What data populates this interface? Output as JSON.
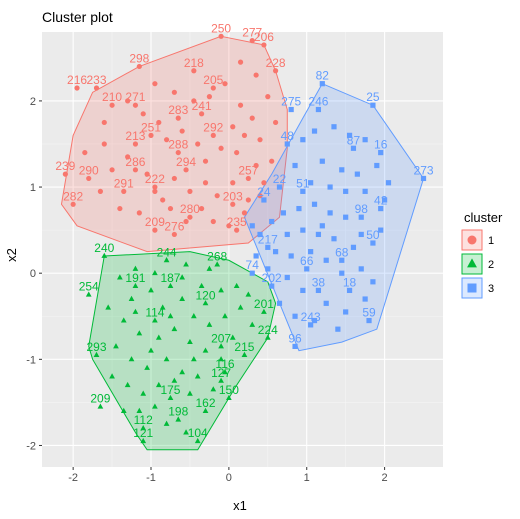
{
  "chart_data": {
    "type": "scatter",
    "title": "Cluster plot",
    "xlabel": "x1",
    "ylabel": "x2",
    "xlim": [
      -2.4,
      2.75
    ],
    "ylim": [
      -2.25,
      2.8
    ],
    "x_ticks": [
      -2,
      -1,
      0,
      1,
      2
    ],
    "y_ticks": [
      -2,
      -1,
      0,
      1,
      2
    ],
    "grid": true,
    "legend": {
      "title": "cluster",
      "placement": "right"
    },
    "series": [
      {
        "name": "1",
        "color": "#F8766D",
        "shape": "circle",
        "hull": [
          [
            -0.1,
            2.75
          ],
          [
            0.45,
            2.65
          ],
          [
            0.6,
            2.35
          ],
          [
            0.75,
            1.9
          ],
          [
            0.75,
            1.45
          ],
          [
            0.65,
            0.65
          ],
          [
            0.25,
            0.35
          ],
          [
            -1.05,
            0.25
          ],
          [
            -1.95,
            0.55
          ],
          [
            -2.15,
            0.8
          ],
          [
            -2.0,
            1.6
          ],
          [
            -1.75,
            2.1
          ],
          [
            -1.15,
            2.4
          ]
        ],
        "points": [
          {
            "label": "250",
            "x": -0.1,
            "y": 2.75
          },
          {
            "label": "277",
            "x": 0.3,
            "y": 2.7
          },
          {
            "label": "206",
            "x": 0.45,
            "y": 2.65
          },
          {
            "label": "298",
            "x": -1.15,
            "y": 2.4
          },
          {
            "label": "218",
            "x": -0.45,
            "y": 2.35
          },
          {
            "label": "228",
            "x": 0.6,
            "y": 2.35
          },
          {
            "label": "216",
            "x": -1.95,
            "y": 2.15
          },
          {
            "label": "233",
            "x": -1.7,
            "y": 2.15
          },
          {
            "label": "210",
            "x": -1.5,
            "y": 1.95
          },
          {
            "label": "271",
            "x": -1.2,
            "y": 1.95
          },
          {
            "label": "283",
            "x": -0.65,
            "y": 1.8
          },
          {
            "label": "241",
            "x": -0.35,
            "y": 1.85
          },
          {
            "label": "292",
            "x": -0.2,
            "y": 1.6
          },
          {
            "label": "251",
            "x": -1.0,
            "y": 1.6
          },
          {
            "label": "213",
            "x": -1.2,
            "y": 1.5
          },
          {
            "label": "288",
            "x": -0.65,
            "y": 1.4
          },
          {
            "label": "286",
            "x": -1.2,
            "y": 1.2
          },
          {
            "label": "239",
            "x": -2.1,
            "y": 1.15
          },
          {
            "label": "290",
            "x": -1.8,
            "y": 1.1
          },
          {
            "label": "222",
            "x": -0.95,
            "y": 1.0
          },
          {
            "label": "291",
            "x": -1.35,
            "y": 0.95
          },
          {
            "label": "282",
            "x": -2.0,
            "y": 0.8
          },
          {
            "label": "280",
            "x": -0.5,
            "y": 0.65
          },
          {
            "label": "235",
            "x": 0.1,
            "y": 0.5
          },
          {
            "label": "276",
            "x": -0.7,
            "y": 0.45
          },
          {
            "label": "209",
            "x": -0.95,
            "y": 0.5
          },
          {
            "label": "257",
            "x": 0.25,
            "y": 1.1
          },
          {
            "label": "205",
            "x": -0.2,
            "y": 2.15
          },
          {
            "label": "294",
            "x": -0.55,
            "y": 1.2
          },
          {
            "label": "203",
            "x": 0.05,
            "y": 0.8
          }
        ]
      },
      {
        "name": "2",
        "color": "#00BA38",
        "shape": "triangle",
        "hull": [
          [
            -1.6,
            0.2
          ],
          [
            -0.5,
            0.25
          ],
          [
            0.0,
            0.15
          ],
          [
            0.5,
            -0.1
          ],
          [
            0.6,
            -0.35
          ],
          [
            0.5,
            -0.75
          ],
          [
            0.1,
            -1.3
          ],
          [
            -0.4,
            -2.05
          ],
          [
            -1.05,
            -2.05
          ],
          [
            -1.2,
            -1.85
          ],
          [
            -1.75,
            -1.0
          ],
          [
            -1.8,
            -0.85
          ]
        ],
        "points": [
          {
            "label": "240",
            "x": -1.6,
            "y": 0.2
          },
          {
            "label": "244",
            "x": -0.8,
            "y": 0.15
          },
          {
            "label": "268",
            "x": -0.15,
            "y": 0.1
          },
          {
            "label": "254",
            "x": -1.8,
            "y": -0.25
          },
          {
            "label": "293",
            "x": -1.7,
            "y": -0.95
          },
          {
            "label": "209",
            "x": -1.65,
            "y": -1.55
          },
          {
            "label": "121",
            "x": -1.1,
            "y": -1.95
          },
          {
            "label": "198",
            "x": -0.65,
            "y": -1.7
          },
          {
            "label": "162",
            "x": -0.3,
            "y": -1.6
          },
          {
            "label": "104",
            "x": -0.4,
            "y": -1.95
          },
          {
            "label": "150",
            "x": 0.0,
            "y": -1.45
          },
          {
            "label": "127",
            "x": -0.1,
            "y": -1.25
          },
          {
            "label": "215",
            "x": 0.2,
            "y": -0.95
          },
          {
            "label": "224",
            "x": 0.5,
            "y": -0.75
          },
          {
            "label": "201",
            "x": 0.45,
            "y": -0.45
          },
          {
            "label": "191",
            "x": -1.2,
            "y": -0.15
          },
          {
            "label": "187",
            "x": -0.75,
            "y": -0.15
          },
          {
            "label": "120",
            "x": -0.3,
            "y": -0.35
          },
          {
            "label": "112",
            "x": -1.1,
            "y": -1.8
          },
          {
            "label": "175",
            "x": -0.75,
            "y": -1.45
          },
          {
            "label": "116",
            "x": -0.05,
            "y": -1.15
          },
          {
            "label": "207",
            "x": -0.1,
            "y": -0.85
          },
          {
            "label": "114",
            "x": -0.95,
            "y": -0.55
          }
        ]
      },
      {
        "name": "3",
        "color": "#619CFF",
        "shape": "square",
        "hull": [
          [
            1.2,
            2.2
          ],
          [
            1.85,
            1.95
          ],
          [
            2.5,
            1.1
          ],
          [
            1.9,
            -0.65
          ],
          [
            1.45,
            -0.8
          ],
          [
            0.9,
            -0.9
          ],
          [
            0.2,
            0.65
          ],
          [
            0.55,
            1.15
          ],
          [
            0.95,
            1.8
          ]
        ],
        "points": [
          {
            "label": "82",
            "x": 1.2,
            "y": 2.2
          },
          {
            "label": "275",
            "x": 0.8,
            "y": 1.9
          },
          {
            "label": "246",
            "x": 1.15,
            "y": 1.9
          },
          {
            "label": "25",
            "x": 1.85,
            "y": 1.95
          },
          {
            "label": "273",
            "x": 2.5,
            "y": 1.1
          },
          {
            "label": "48",
            "x": 0.75,
            "y": 1.5
          },
          {
            "label": "87",
            "x": 1.6,
            "y": 1.45
          },
          {
            "label": "16",
            "x": 1.95,
            "y": 1.4
          },
          {
            "label": "51",
            "x": 0.95,
            "y": 0.95
          },
          {
            "label": "22",
            "x": 0.65,
            "y": 1.0
          },
          {
            "label": "24",
            "x": 0.45,
            "y": 0.85
          },
          {
            "label": "50",
            "x": 1.85,
            "y": 0.35
          },
          {
            "label": "68",
            "x": 1.45,
            "y": 0.15
          },
          {
            "label": "18",
            "x": 1.55,
            "y": -0.2
          },
          {
            "label": "243",
            "x": 1.05,
            "y": -0.6
          },
          {
            "label": "96",
            "x": 0.85,
            "y": -0.85
          },
          {
            "label": "202",
            "x": 0.55,
            "y": -0.15
          },
          {
            "label": "217",
            "x": 0.5,
            "y": 0.3
          },
          {
            "label": "74",
            "x": 0.3,
            "y": 0.0
          },
          {
            "label": "59",
            "x": 1.8,
            "y": -0.55
          },
          {
            "label": "42",
            "x": 1.95,
            "y": 0.75
          },
          {
            "label": "98",
            "x": 1.7,
            "y": 0.65
          },
          {
            "label": "66",
            "x": 1.0,
            "y": 0.05
          },
          {
            "label": "38",
            "x": 1.15,
            "y": -0.2
          }
        ]
      }
    ],
    "dense_points": {
      "1": [
        [
          -0.9,
          1.75
        ],
        [
          -0.8,
          1.55
        ],
        [
          -0.6,
          1.65
        ],
        [
          -0.4,
          1.5
        ],
        [
          -0.3,
          1.3
        ],
        [
          -0.1,
          1.45
        ],
        [
          0.05,
          1.7
        ],
        [
          0.1,
          1.4
        ],
        [
          0.2,
          1.6
        ],
        [
          0.3,
          1.8
        ],
        [
          0.15,
          1.95
        ],
        [
          0.35,
          1.25
        ],
        [
          0.4,
          1.55
        ],
        [
          0.45,
          1.05
        ],
        [
          0.25,
          0.85
        ],
        [
          0.05,
          1.05
        ],
        [
          -0.15,
          0.9
        ],
        [
          -0.3,
          1.05
        ],
        [
          -0.5,
          0.95
        ],
        [
          -0.7,
          1.1
        ],
        [
          -0.85,
          0.85
        ],
        [
          -1.05,
          1.15
        ],
        [
          -1.3,
          1.35
        ],
        [
          -1.5,
          1.2
        ],
        [
          -1.65,
          0.95
        ],
        [
          -1.4,
          0.75
        ],
        [
          -1.15,
          0.7
        ],
        [
          -0.95,
          0.95
        ],
        [
          -0.75,
          0.75
        ],
        [
          -0.55,
          0.6
        ],
        [
          -0.35,
          0.75
        ],
        [
          -0.2,
          0.6
        ],
        [
          0.0,
          0.55
        ],
        [
          0.2,
          0.7
        ],
        [
          0.4,
          0.9
        ],
        [
          0.55,
          1.3
        ],
        [
          0.6,
          1.75
        ],
        [
          0.5,
          2.05
        ],
        [
          0.35,
          2.3
        ],
        [
          0.15,
          2.45
        ],
        [
          -0.05,
          2.2
        ],
        [
          -0.25,
          2.05
        ],
        [
          -0.45,
          2.0
        ],
        [
          -0.7,
          2.1
        ],
        [
          -0.95,
          2.2
        ],
        [
          -1.3,
          2.0
        ],
        [
          -1.6,
          1.75
        ],
        [
          -1.85,
          1.4
        ],
        [
          -1.6,
          1.5
        ],
        [
          -1.1,
          1.85
        ]
      ],
      "2": [
        [
          -1.4,
          -0.05
        ],
        [
          -1.25,
          -0.3
        ],
        [
          -1.0,
          -0.2
        ],
        [
          -0.85,
          -0.4
        ],
        [
          -0.6,
          -0.3
        ],
        [
          -0.45,
          -0.5
        ],
        [
          -0.25,
          -0.6
        ],
        [
          -0.05,
          -0.5
        ],
        [
          0.15,
          -0.4
        ],
        [
          0.3,
          -0.6
        ],
        [
          -1.35,
          -0.55
        ],
        [
          -1.15,
          -0.7
        ],
        [
          -0.9,
          -0.75
        ],
        [
          -0.7,
          -0.65
        ],
        [
          -0.5,
          -0.8
        ],
        [
          -0.3,
          -0.9
        ],
        [
          -0.1,
          -1.0
        ],
        [
          0.05,
          -0.75
        ],
        [
          -1.45,
          -0.85
        ],
        [
          -1.25,
          -1.0
        ],
        [
          -1.05,
          -1.1
        ],
        [
          -0.8,
          -1.0
        ],
        [
          -0.6,
          -1.15
        ],
        [
          -0.4,
          -1.2
        ],
        [
          -0.2,
          -1.35
        ],
        [
          -1.5,
          -1.2
        ],
        [
          -1.3,
          -1.3
        ],
        [
          -1.1,
          -1.4
        ],
        [
          -0.9,
          -1.3
        ],
        [
          -0.7,
          -1.25
        ],
        [
          -0.5,
          -1.4
        ],
        [
          -1.35,
          -1.6
        ],
        [
          -1.15,
          -1.6
        ],
        [
          -0.95,
          -1.55
        ],
        [
          -0.8,
          -1.75
        ],
        [
          -0.55,
          -1.85
        ],
        [
          -1.55,
          -0.4
        ],
        [
          -1.2,
          0.05
        ],
        [
          -0.95,
          0.0
        ],
        [
          -0.6,
          -0.05
        ],
        [
          -0.35,
          -0.15
        ],
        [
          -0.1,
          -0.2
        ],
        [
          0.1,
          -0.15
        ],
        [
          0.25,
          -0.25
        ],
        [
          -0.25,
          0.05
        ],
        [
          -0.55,
          0.1
        ],
        [
          -1.0,
          -0.9
        ],
        [
          -0.75,
          -0.5
        ],
        [
          -1.2,
          -0.45
        ],
        [
          -0.45,
          -1.0
        ]
      ],
      "3": [
        [
          0.95,
          1.55
        ],
        [
          1.1,
          1.65
        ],
        [
          1.35,
          1.7
        ],
        [
          1.55,
          1.6
        ],
        [
          1.75,
          1.55
        ],
        [
          1.9,
          1.25
        ],
        [
          2.05,
          1.05
        ],
        [
          1.2,
          1.3
        ],
        [
          1.45,
          1.2
        ],
        [
          1.65,
          1.15
        ],
        [
          0.85,
          1.25
        ],
        [
          1.05,
          1.05
        ],
        [
          1.3,
          1.0
        ],
        [
          1.5,
          0.95
        ],
        [
          1.75,
          0.95
        ],
        [
          2.0,
          0.85
        ],
        [
          0.7,
          0.7
        ],
        [
          0.9,
          0.75
        ],
        [
          1.1,
          0.8
        ],
        [
          1.3,
          0.7
        ],
        [
          1.5,
          0.65
        ],
        [
          1.7,
          0.45
        ],
        [
          1.95,
          0.5
        ],
        [
          0.55,
          0.6
        ],
        [
          0.75,
          0.45
        ],
        [
          0.95,
          0.5
        ],
        [
          1.15,
          0.45
        ],
        [
          1.35,
          0.4
        ],
        [
          1.6,
          0.3
        ],
        [
          0.4,
          0.45
        ],
        [
          0.6,
          0.25
        ],
        [
          0.8,
          0.2
        ],
        [
          1.05,
          0.25
        ],
        [
          1.25,
          0.15
        ],
        [
          1.45,
          0.0
        ],
        [
          1.7,
          0.05
        ],
        [
          0.5,
          0.05
        ],
        [
          0.75,
          -0.05
        ],
        [
          0.95,
          -0.2
        ],
        [
          1.25,
          -0.35
        ],
        [
          1.5,
          -0.45
        ],
        [
          1.75,
          -0.3
        ],
        [
          1.85,
          -0.1
        ],
        [
          0.65,
          -0.35
        ],
        [
          0.85,
          -0.5
        ],
        [
          1.1,
          -0.55
        ],
        [
          1.4,
          -0.65
        ],
        [
          0.35,
          0.2
        ],
        [
          0.3,
          0.55
        ],
        [
          1.2,
          0.55
        ]
      ]
    }
  }
}
